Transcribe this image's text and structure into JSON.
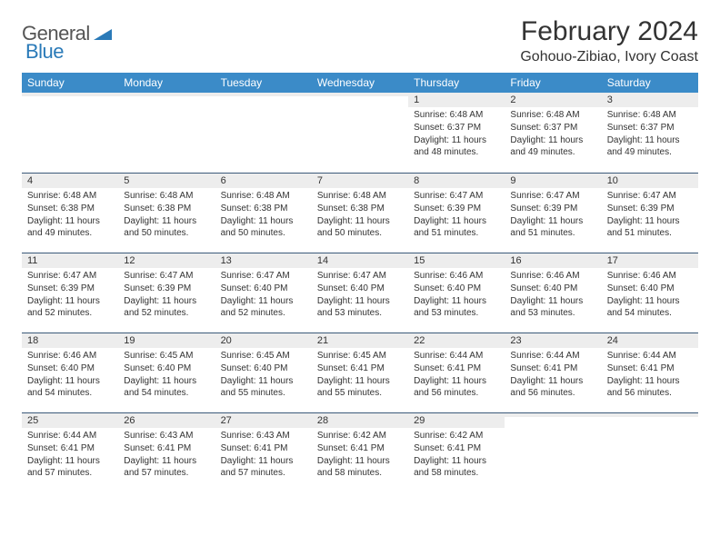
{
  "logo": {
    "text1": "General",
    "text2": "Blue"
  },
  "title": "February 2024",
  "location": "Gohouo-Zibiao, Ivory Coast",
  "colors": {
    "header_bg": "#3b8bc8",
    "header_text": "#ffffff",
    "daynum_bg": "#ededed",
    "divider": "#3b5a7a",
    "body_text": "#333333",
    "logo_gray": "#555555",
    "logo_blue": "#2a7ab8",
    "page_bg": "#ffffff"
  },
  "day_headers": [
    "Sunday",
    "Monday",
    "Tuesday",
    "Wednesday",
    "Thursday",
    "Friday",
    "Saturday"
  ],
  "weeks": [
    [
      {
        "n": "",
        "sr": "",
        "ss": "",
        "dl": ""
      },
      {
        "n": "",
        "sr": "",
        "ss": "",
        "dl": ""
      },
      {
        "n": "",
        "sr": "",
        "ss": "",
        "dl": ""
      },
      {
        "n": "",
        "sr": "",
        "ss": "",
        "dl": ""
      },
      {
        "n": "1",
        "sr": "Sunrise: 6:48 AM",
        "ss": "Sunset: 6:37 PM",
        "dl": "Daylight: 11 hours and 48 minutes."
      },
      {
        "n": "2",
        "sr": "Sunrise: 6:48 AM",
        "ss": "Sunset: 6:37 PM",
        "dl": "Daylight: 11 hours and 49 minutes."
      },
      {
        "n": "3",
        "sr": "Sunrise: 6:48 AM",
        "ss": "Sunset: 6:37 PM",
        "dl": "Daylight: 11 hours and 49 minutes."
      }
    ],
    [
      {
        "n": "4",
        "sr": "Sunrise: 6:48 AM",
        "ss": "Sunset: 6:38 PM",
        "dl": "Daylight: 11 hours and 49 minutes."
      },
      {
        "n": "5",
        "sr": "Sunrise: 6:48 AM",
        "ss": "Sunset: 6:38 PM",
        "dl": "Daylight: 11 hours and 50 minutes."
      },
      {
        "n": "6",
        "sr": "Sunrise: 6:48 AM",
        "ss": "Sunset: 6:38 PM",
        "dl": "Daylight: 11 hours and 50 minutes."
      },
      {
        "n": "7",
        "sr": "Sunrise: 6:48 AM",
        "ss": "Sunset: 6:38 PM",
        "dl": "Daylight: 11 hours and 50 minutes."
      },
      {
        "n": "8",
        "sr": "Sunrise: 6:47 AM",
        "ss": "Sunset: 6:39 PM",
        "dl": "Daylight: 11 hours and 51 minutes."
      },
      {
        "n": "9",
        "sr": "Sunrise: 6:47 AM",
        "ss": "Sunset: 6:39 PM",
        "dl": "Daylight: 11 hours and 51 minutes."
      },
      {
        "n": "10",
        "sr": "Sunrise: 6:47 AM",
        "ss": "Sunset: 6:39 PM",
        "dl": "Daylight: 11 hours and 51 minutes."
      }
    ],
    [
      {
        "n": "11",
        "sr": "Sunrise: 6:47 AM",
        "ss": "Sunset: 6:39 PM",
        "dl": "Daylight: 11 hours and 52 minutes."
      },
      {
        "n": "12",
        "sr": "Sunrise: 6:47 AM",
        "ss": "Sunset: 6:39 PM",
        "dl": "Daylight: 11 hours and 52 minutes."
      },
      {
        "n": "13",
        "sr": "Sunrise: 6:47 AM",
        "ss": "Sunset: 6:40 PM",
        "dl": "Daylight: 11 hours and 52 minutes."
      },
      {
        "n": "14",
        "sr": "Sunrise: 6:47 AM",
        "ss": "Sunset: 6:40 PM",
        "dl": "Daylight: 11 hours and 53 minutes."
      },
      {
        "n": "15",
        "sr": "Sunrise: 6:46 AM",
        "ss": "Sunset: 6:40 PM",
        "dl": "Daylight: 11 hours and 53 minutes."
      },
      {
        "n": "16",
        "sr": "Sunrise: 6:46 AM",
        "ss": "Sunset: 6:40 PM",
        "dl": "Daylight: 11 hours and 53 minutes."
      },
      {
        "n": "17",
        "sr": "Sunrise: 6:46 AM",
        "ss": "Sunset: 6:40 PM",
        "dl": "Daylight: 11 hours and 54 minutes."
      }
    ],
    [
      {
        "n": "18",
        "sr": "Sunrise: 6:46 AM",
        "ss": "Sunset: 6:40 PM",
        "dl": "Daylight: 11 hours and 54 minutes."
      },
      {
        "n": "19",
        "sr": "Sunrise: 6:45 AM",
        "ss": "Sunset: 6:40 PM",
        "dl": "Daylight: 11 hours and 54 minutes."
      },
      {
        "n": "20",
        "sr": "Sunrise: 6:45 AM",
        "ss": "Sunset: 6:40 PM",
        "dl": "Daylight: 11 hours and 55 minutes."
      },
      {
        "n": "21",
        "sr": "Sunrise: 6:45 AM",
        "ss": "Sunset: 6:41 PM",
        "dl": "Daylight: 11 hours and 55 minutes."
      },
      {
        "n": "22",
        "sr": "Sunrise: 6:44 AM",
        "ss": "Sunset: 6:41 PM",
        "dl": "Daylight: 11 hours and 56 minutes."
      },
      {
        "n": "23",
        "sr": "Sunrise: 6:44 AM",
        "ss": "Sunset: 6:41 PM",
        "dl": "Daylight: 11 hours and 56 minutes."
      },
      {
        "n": "24",
        "sr": "Sunrise: 6:44 AM",
        "ss": "Sunset: 6:41 PM",
        "dl": "Daylight: 11 hours and 56 minutes."
      }
    ],
    [
      {
        "n": "25",
        "sr": "Sunrise: 6:44 AM",
        "ss": "Sunset: 6:41 PM",
        "dl": "Daylight: 11 hours and 57 minutes."
      },
      {
        "n": "26",
        "sr": "Sunrise: 6:43 AM",
        "ss": "Sunset: 6:41 PM",
        "dl": "Daylight: 11 hours and 57 minutes."
      },
      {
        "n": "27",
        "sr": "Sunrise: 6:43 AM",
        "ss": "Sunset: 6:41 PM",
        "dl": "Daylight: 11 hours and 57 minutes."
      },
      {
        "n": "28",
        "sr": "Sunrise: 6:42 AM",
        "ss": "Sunset: 6:41 PM",
        "dl": "Daylight: 11 hours and 58 minutes."
      },
      {
        "n": "29",
        "sr": "Sunrise: 6:42 AM",
        "ss": "Sunset: 6:41 PM",
        "dl": "Daylight: 11 hours and 58 minutes."
      },
      {
        "n": "",
        "sr": "",
        "ss": "",
        "dl": ""
      },
      {
        "n": "",
        "sr": "",
        "ss": "",
        "dl": ""
      }
    ]
  ]
}
